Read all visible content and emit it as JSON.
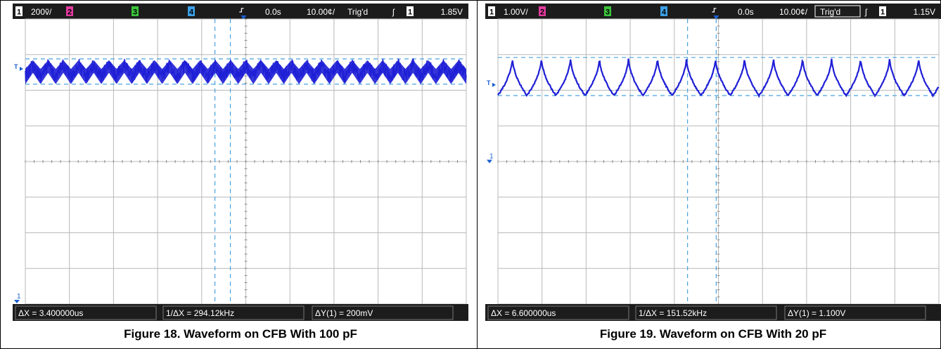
{
  "colors": {
    "screen_bg": "#ffffff",
    "grid": "#b8b8b8",
    "header_bg": "#1c1c1c",
    "trace": "#1f1fd6",
    "cursor": "#4aa3e0",
    "ch1": "#e8e83a",
    "ch2": "#e23aa0",
    "ch3": "#3ac43a",
    "ch4": "#3aa0e8",
    "marker": "#1a5fd0"
  },
  "chart_data": [
    {
      "type": "line",
      "title": "Figure 18. Waveform on CFB With 100 pF",
      "grid": true,
      "grid_divisions": {
        "horizontal": 10,
        "vertical": 8
      },
      "header": {
        "ch1_num": "1",
        "ch1_scale": "200ṽ/",
        "ch2_num": "2",
        "ch3_num": "3",
        "ch4_num": "4",
        "delay": "0.0s",
        "timebase": "10.00¢/",
        "trig_state": "Trig'd",
        "trig_slope": "ʃ",
        "trig_src": "1",
        "trig_level": "1.85V"
      },
      "markers": {
        "trigger_level": "T",
        "ch1_ground": "1"
      },
      "footer": {
        "dx": "ΔX = 3.400000us",
        "inv_dx": "1/ΔX = 294.12kHz",
        "dy": "ΔY(1) = 200mV"
      },
      "series": [
        {
          "waveform": "sawtooth_noisy",
          "cycles": 29,
          "top_div": 1.12,
          "bottom_div": 1.83,
          "noise_div": 0.18
        }
      ],
      "cursors": {
        "x_div": [
          4.3,
          4.65
        ],
        "y_div": [
          1.12,
          1.83
        ]
      },
      "trigger_x_div": 4.95
    },
    {
      "type": "line",
      "title": "Figure 19. Waveform on CFB With 20 pF",
      "grid": true,
      "grid_divisions": {
        "horizontal": 10,
        "vertical": 8
      },
      "header": {
        "ch1_num": "1",
        "ch1_scale": "1.00V/",
        "ch2_num": "2",
        "ch3_num": "3",
        "ch4_num": "4",
        "delay": "0.0s",
        "timebase": "10.00¢/",
        "trig_state": "Trig'd",
        "trig_slope": "ʃ",
        "trig_src": "1",
        "trig_level": "1.15V"
      },
      "markers": {
        "trigger_level": "T",
        "ch1_ground": "1"
      },
      "footer": {
        "dx": "ΔX = 6.600000us",
        "inv_dx": "1/ΔX = 151.52kHz",
        "dy": "ΔY(1) = 1.100V"
      },
      "series": [
        {
          "waveform": "cusp",
          "cycles": 15.2,
          "top_div": 1.08,
          "bottom_div": 2.15,
          "noise_div": 0.04
        }
      ],
      "cursors": {
        "x_div": [
          4.3,
          4.95
        ],
        "y_div": [
          1.08,
          2.15
        ]
      },
      "trigger_x_div": 4.95
    }
  ]
}
